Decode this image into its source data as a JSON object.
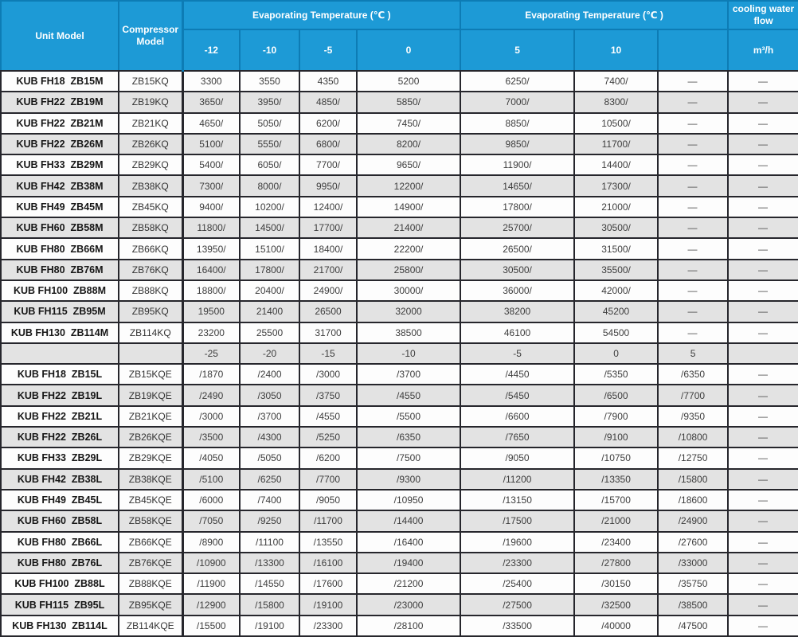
{
  "colors": {
    "header_blue": "#1d9ad6",
    "header_border_blue": "#0d7cb5",
    "grid_border_dark": "#26262c",
    "row_alt_gray": "#e3e3e3",
    "row_white": "#fdfdfd"
  },
  "header": {
    "unit_model": "Unit Model",
    "compressor_model": "Compressor Model",
    "evap_group_1": "Evaporating Temperature (℃ )",
    "evap_group_2": "Evaporating Temperature (℃ )",
    "cooling_water_flow": "cooling water flow",
    "cooling_unit": "m³/h",
    "temp_columns_m": [
      "-12",
      "-10",
      "-5",
      "0",
      "5",
      "10",
      ""
    ]
  },
  "separator_row": [
    "-25",
    "-20",
    "-15",
    "-10",
    "-5",
    "0",
    "5",
    ""
  ],
  "rows_m": [
    {
      "unit": "KUB FH18  ZB15M",
      "compressor": "ZB15KQ",
      "values": [
        "3300",
        "3550",
        "4350",
        "5200",
        "6250/",
        "7400/",
        "—",
        "—"
      ]
    },
    {
      "unit": "KUB FH22  ZB19M",
      "compressor": "ZB19KQ",
      "values": [
        "3650/",
        "3950/",
        "4850/",
        "5850/",
        "7000/",
        "8300/",
        "—",
        "—"
      ]
    },
    {
      "unit": "KUB FH22  ZB21M",
      "compressor": "ZB21KQ",
      "values": [
        "4650/",
        "5050/",
        "6200/",
        "7450/",
        "8850/",
        "10500/",
        "—",
        "—"
      ]
    },
    {
      "unit": "KUB FH22  ZB26M",
      "compressor": "ZB26KQ",
      "values": [
        "5100/",
        "5550/",
        "6800/",
        "8200/",
        "9850/",
        "11700/",
        "—",
        "—"
      ]
    },
    {
      "unit": "KUB FH33  ZB29M",
      "compressor": "ZB29KQ",
      "values": [
        "5400/",
        "6050/",
        "7700/",
        "9650/",
        "11900/",
        "14400/",
        "—",
        "—"
      ]
    },
    {
      "unit": "KUB FH42  ZB38M",
      "compressor": "ZB38KQ",
      "values": [
        "7300/",
        "8000/",
        "9950/",
        "12200/",
        "14650/",
        "17300/",
        "—",
        "—"
      ]
    },
    {
      "unit": "KUB FH49  ZB45M",
      "compressor": "ZB45KQ",
      "values": [
        "9400/",
        "10200/",
        "12400/",
        "14900/",
        "17800/",
        "21000/",
        "—",
        "—"
      ]
    },
    {
      "unit": "KUB FH60  ZB58M",
      "compressor": "ZB58KQ",
      "values": [
        "11800/",
        "14500/",
        "17700/",
        "21400/",
        "25700/",
        "30500/",
        "—",
        "—"
      ]
    },
    {
      "unit": "KUB FH80  ZB66M",
      "compressor": "ZB66KQ",
      "values": [
        "13950/",
        "15100/",
        "18400/",
        "22200/",
        "26500/",
        "31500/",
        "—",
        "—"
      ]
    },
    {
      "unit": "KUB FH80  ZB76M",
      "compressor": "ZB76KQ",
      "values": [
        "16400/",
        "17800/",
        "21700/",
        "25800/",
        "30500/",
        "35500/",
        "—",
        "—"
      ]
    },
    {
      "unit": "KUB FH100  ZB88M",
      "compressor": "ZB88KQ",
      "values": [
        "18800/",
        "20400/",
        "24900/",
        "30000/",
        "36000/",
        "42000/",
        "—",
        "—"
      ]
    },
    {
      "unit": "KUB FH115  ZB95M",
      "compressor": "ZB95KQ",
      "values": [
        "19500",
        "21400",
        "26500",
        "32000",
        "38200",
        "45200",
        "—",
        "—"
      ]
    },
    {
      "unit": "KUB FH130  ZB114M",
      "compressor": "ZB114KQ",
      "values": [
        "23200",
        "25500",
        "31700",
        "38500",
        "46100",
        "54500",
        "—",
        "—"
      ]
    }
  ],
  "rows_l": [
    {
      "unit": "KUB FH18  ZB15L",
      "compressor": "ZB15KQE",
      "values": [
        "/1870",
        "/2400",
        "/3000",
        "/3700",
        "/4450",
        "/5350",
        "/6350",
        "—"
      ]
    },
    {
      "unit": "KUB FH22  ZB19L",
      "compressor": "ZB19KQE",
      "values": [
        "/2490",
        "/3050",
        "/3750",
        "/4550",
        "/5450",
        "/6500",
        "/7700",
        "—"
      ]
    },
    {
      "unit": "KUB FH22  ZB21L",
      "compressor": "ZB21KQE",
      "values": [
        "/3000",
        "/3700",
        "/4550",
        "/5500",
        "/6600",
        "/7900",
        "/9350",
        "—"
      ]
    },
    {
      "unit": "KUB FH22  ZB26L",
      "compressor": "ZB26KQE",
      "values": [
        "/3500",
        "/4300",
        "/5250",
        "/6350",
        "/7650",
        "/9100",
        "/10800",
        "—"
      ]
    },
    {
      "unit": "KUB FH33  ZB29L",
      "compressor": "ZB29KQE",
      "values": [
        "/4050",
        "/5050",
        "/6200",
        "/7500",
        "/9050",
        "/10750",
        "/12750",
        "—"
      ]
    },
    {
      "unit": "KUB FH42  ZB38L",
      "compressor": "ZB38KQE",
      "values": [
        "/5100",
        "/6250",
        "/7700",
        "/9300",
        "/11200",
        "/13350",
        "/15800",
        "—"
      ]
    },
    {
      "unit": "KUB FH49  ZB45L",
      "compressor": "ZB45KQE",
      "values": [
        "/6000",
        "/7400",
        "/9050",
        "/10950",
        "/13150",
        "/15700",
        "/18600",
        "—"
      ]
    },
    {
      "unit": "KUB FH60  ZB58L",
      "compressor": "ZB58KQE",
      "values": [
        "/7050",
        "/9250",
        "/11700",
        "/14400",
        "/17500",
        "/21000",
        "/24900",
        "—"
      ]
    },
    {
      "unit": "KUB FH80  ZB66L",
      "compressor": "ZB66KQE",
      "values": [
        "/8900",
        "/11100",
        "/13550",
        "/16400",
        "/19600",
        "/23400",
        "/27600",
        "—"
      ]
    },
    {
      "unit": "KUB FH80  ZB76L",
      "compressor": "ZB76KQE",
      "values": [
        "/10900",
        "/13300",
        "/16100",
        "/19400",
        "/23300",
        "/27800",
        "/33000",
        "—"
      ]
    },
    {
      "unit": "KUB FH100  ZB88L",
      "compressor": "ZB88KQE",
      "values": [
        "/11900",
        "/14550",
        "/17600",
        "/21200",
        "/25400",
        "/30150",
        "/35750",
        "—"
      ]
    },
    {
      "unit": "KUB FH115  ZB95L",
      "compressor": "ZB95KQE",
      "values": [
        "/12900",
        "/15800",
        "/19100",
        "/23000",
        "/27500",
        "/32500",
        "/38500",
        "—"
      ]
    },
    {
      "unit": "KUB FH130  ZB114L",
      "compressor": "ZB114KQE",
      "values": [
        "/15500",
        "/19100",
        "/23300",
        "/28100",
        "/33500",
        "/40000",
        "/47500",
        "—"
      ]
    }
  ]
}
